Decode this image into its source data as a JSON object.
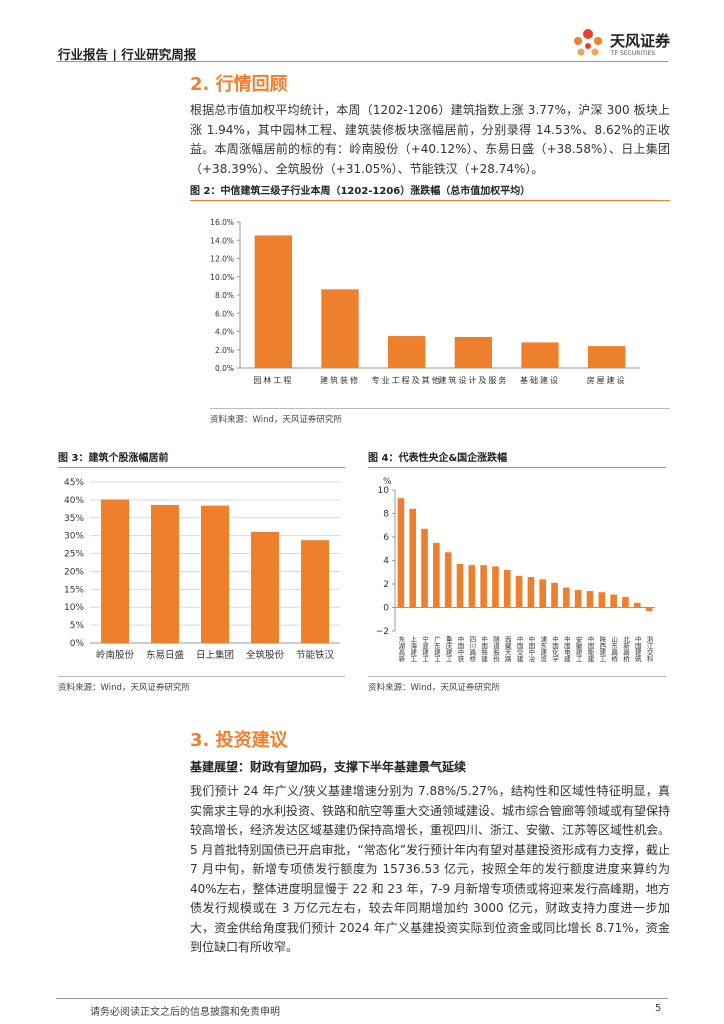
{
  "header": {
    "title": "行业报告 | 行业研究周报",
    "logo_name": "天风证券",
    "logo_en": "TF SECURITIES"
  },
  "section2": {
    "title": "2. 行情回顾",
    "paragraph": "根据总市值加权平均统计，本周（1202-1206）建筑指数上涨 3.77%，沪深 300 板块上涨 1.94%，其中园林工程、建筑装修板块涨幅居前，分别录得 14.53%、8.62%的正收益。本周涨幅居前的标的有：岭南股份（+40.12%）、东易日盛（+38.58%）、日上集团（+38.39%）、全筑股份（+31.05%）、节能铁汉（+28.74%）。"
  },
  "figures": [
    {
      "caption": "图 2：中信建筑三级子行业本周（1202-1206）涨跌幅（总市值加权平均）",
      "source": "资料来源：Wind，天风证券研究所"
    },
    {
      "caption": "图 3：建筑个股涨幅居前",
      "source": "资料来源：Wind，天风证券研究所"
    },
    {
      "caption": "图 4：代表性央企&国企涨跌幅",
      "source": "资料来源：Wind，天风证券研究所"
    }
  ],
  "chart_data": [
    {
      "type": "bar",
      "categories": [
        "园林工程",
        "建筑装修",
        "专业工程及其他",
        "建筑设计及服务",
        "基础建设",
        "房屋建设"
      ],
      "values": [
        14.53,
        8.62,
        3.5,
        3.4,
        2.8,
        2.4
      ],
      "color": "#ee7f2d",
      "ylim": [
        0,
        16
      ],
      "yticks": [
        {
          "value": 0,
          "label": "0.0%"
        },
        {
          "value": 2,
          "label": "2.0%"
        },
        {
          "value": 4,
          "label": "4.0%"
        },
        {
          "value": 6,
          "label": "6.0%"
        },
        {
          "value": 8,
          "label": "8.0%"
        },
        {
          "value": 10,
          "label": "10.0%"
        },
        {
          "value": 12,
          "label": "12.0%"
        },
        {
          "value": 14,
          "label": "14.0%"
        },
        {
          "value": 16,
          "label": "16.0%"
        }
      ],
      "grid": false
    },
    {
      "type": "bar",
      "categories": [
        "岭南股份",
        "东易日盛",
        "日上集团",
        "全筑股份",
        "节能铁汉"
      ],
      "values": [
        40.12,
        38.58,
        38.39,
        31.05,
        28.74
      ],
      "color": "#ee7f2d",
      "ylim": [
        0,
        45
      ],
      "yticks": [
        {
          "value": 0,
          "label": "0%"
        },
        {
          "value": 5,
          "label": "5%"
        },
        {
          "value": 10,
          "label": "10%"
        },
        {
          "value": 15,
          "label": "15%"
        },
        {
          "value": 20,
          "label": "20%"
        },
        {
          "value": 25,
          "label": "25%"
        },
        {
          "value": 30,
          "label": "30%"
        },
        {
          "value": 35,
          "label": "35%"
        },
        {
          "value": 40,
          "label": "40%"
        },
        {
          "value": 45,
          "label": "45%"
        }
      ],
      "grid": true
    },
    {
      "type": "bar",
      "ylabel": "%",
      "categories": [
        "东湖高新",
        "上海建工",
        "宁波建工",
        "广东建工",
        "重庆建工",
        "中国中铁",
        "四川路桥",
        "中国铁建",
        "隧道股份",
        "西藏天路",
        "中国交建",
        "中国中冶",
        "浦东建设",
        "中国化学",
        "中国电建",
        "安徽建工",
        "中国能建",
        "陕西建工",
        "山东路桥",
        "北新路桥",
        "中国建筑",
        "浙江交科"
      ],
      "values": [
        9.3,
        8.4,
        6.7,
        5.5,
        4.7,
        3.7,
        3.6,
        3.6,
        3.5,
        3.2,
        2.7,
        2.6,
        2.4,
        2.1,
        1.7,
        1.5,
        1.4,
        1.3,
        1.1,
        0.9,
        0.4,
        -0.3
      ],
      "color": "#ee7f2d",
      "ylim": [
        -2,
        10
      ],
      "yticks": [
        {
          "value": -2,
          "label": "−2"
        },
        0,
        2,
        4,
        6,
        8,
        10
      ],
      "grid": false
    }
  ],
  "section3": {
    "title": "3. 投资建议",
    "subtitle": "基建展望：财政有望加码，支撑下半年基建景气延续",
    "paragraph": "我们预计 24 年广义/狭义基建增速分别为 7.88%/5.27%，结构性和区域性特征明显，真实需求主导的水利投资、铁路和航空等重大交通领域建设、城市综合管廊等领域或有望保持较高增长，经济发达区域基建仍保持高增长，重视四川、浙江、安徽、江苏等区域性机会。5 月首批特别国债已开启审批，“常态化”发行预计年内有望对基建投资形成有力支撑，截止 7 月中旬，新增专项债发行额度为 15736.53 亿元，按照全年的发行额度进度来算约为 40%左右，整体进度明显慢于 22 和 23 年，7-9 月新增专项债或将迎来发行高峰期，地方债发行规模或在 3 万亿元左右，较去年同期增加约 3000 亿元，财政支持力度进一步加大，资金供给角度我们预计 2024 年广义基建投资实际到位资金或同比增长 8.71%，资金到位缺口有所收窄。"
  },
  "footer": {
    "disclaimer": "请务必阅读正文之后的信息披露和免责申明",
    "page": "5"
  }
}
